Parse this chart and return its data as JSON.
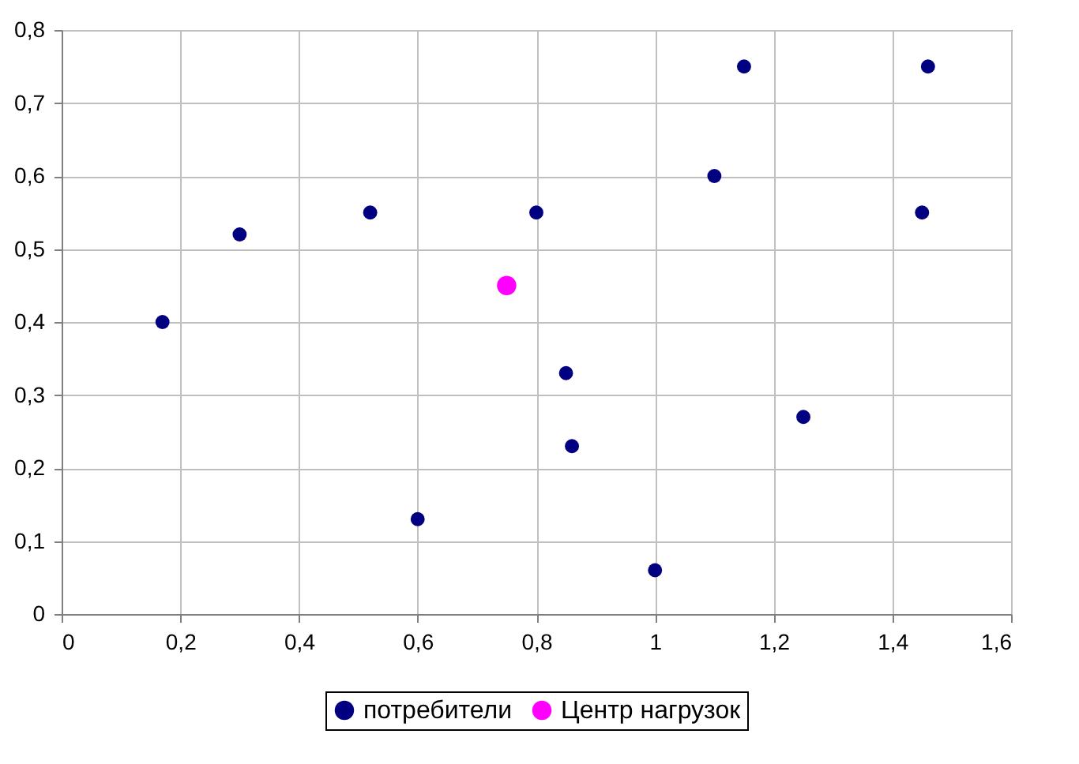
{
  "chart_data": {
    "type": "scatter",
    "grid": true,
    "legend": "bottom",
    "marker": "circle",
    "xlim": [
      0,
      1.6
    ],
    "ylim": [
      0,
      0.8
    ],
    "xticks": [
      0,
      {
        "value": 0.2,
        "label": "0,2"
      },
      {
        "value": 0.4,
        "label": "0,4"
      },
      {
        "value": 0.6,
        "label": "0,6"
      },
      {
        "value": 0.8,
        "label": "0,8"
      },
      1,
      {
        "value": 1.2,
        "label": "1,2"
      },
      {
        "value": 1.4,
        "label": "1,4"
      },
      {
        "value": 1.6,
        "label": "1,6"
      }
    ],
    "yticks": [
      0,
      {
        "value": 0.1,
        "label": "0,1"
      },
      {
        "value": 0.2,
        "label": "0,2"
      },
      {
        "value": 0.3,
        "label": "0,3"
      },
      {
        "value": 0.4,
        "label": "0,4"
      },
      {
        "value": 0.5,
        "label": "0,5"
      },
      {
        "value": 0.6,
        "label": "0,6"
      },
      {
        "value": 0.7,
        "label": "0,7"
      },
      {
        "value": 0.8,
        "label": "0,8"
      }
    ],
    "series": [
      {
        "name": "потребители",
        "color": "#000080",
        "x": [
          0.17,
          0.3,
          0.52,
          0.6,
          0.8,
          0.85,
          0.86,
          1.0,
          1.1,
          1.15,
          1.25,
          1.45,
          1.46
        ],
        "values": [
          0.4,
          0.52,
          0.55,
          0.13,
          0.55,
          0.33,
          0.23,
          0.06,
          0.6,
          0.75,
          0.27,
          0.55,
          0.75
        ]
      },
      {
        "name": "Центр нагрузок",
        "color": "#ff00ff",
        "x": [
          0.75
        ],
        "values": [
          0.45
        ]
      }
    ]
  }
}
